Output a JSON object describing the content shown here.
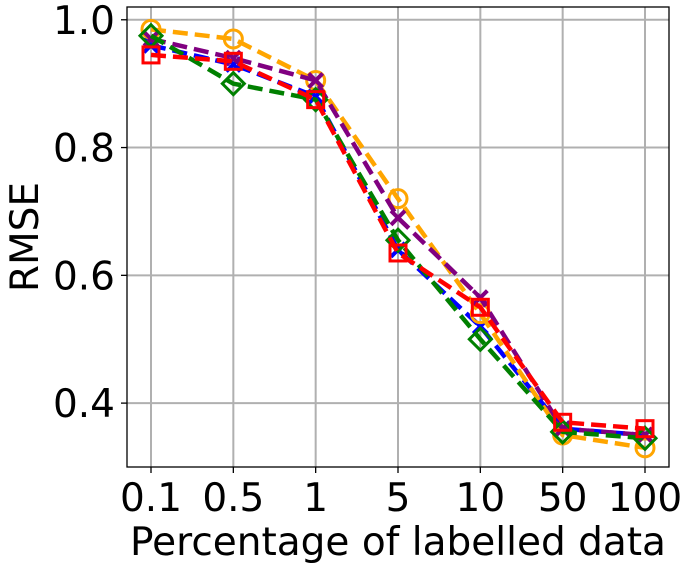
{
  "chart_data": {
    "type": "line",
    "xlabel": "Percentage of labelled data",
    "ylabel": "RMSE",
    "categories": [
      "0.1",
      "0.5",
      "1",
      "5",
      "10",
      "50",
      "100"
    ],
    "y_ticks": [
      "0.4",
      "0.6",
      "0.8",
      "1.0"
    ],
    "ylim": [
      0.3,
      1.02
    ],
    "grid": true,
    "legend": "none",
    "series": [
      {
        "color": "#0000ff",
        "marker": "x",
        "values": [
          0.96,
          0.93,
          0.88,
          0.64,
          0.52,
          0.36,
          0.35
        ]
      },
      {
        "color": "#ffa500",
        "marker": "circle",
        "values": [
          0.985,
          0.97,
          0.905,
          0.72,
          0.54,
          0.35,
          0.33
        ]
      },
      {
        "color": "#800080",
        "marker": "x",
        "values": [
          0.97,
          0.94,
          0.905,
          0.69,
          0.565,
          0.36,
          0.35
        ]
      },
      {
        "color": "#008000",
        "marker": "diamond",
        "values": [
          0.975,
          0.9,
          0.875,
          0.655,
          0.5,
          0.355,
          0.345
        ]
      },
      {
        "color": "#ff0000",
        "marker": "square",
        "values": [
          0.945,
          0.935,
          0.875,
          0.635,
          0.55,
          0.37,
          0.36
        ]
      }
    ]
  }
}
